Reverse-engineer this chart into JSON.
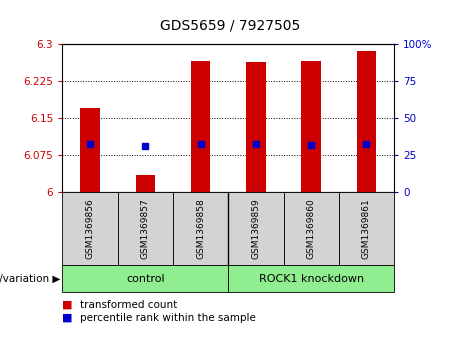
{
  "title": "GDS5659 / 7927505",
  "samples": [
    "GSM1369856",
    "GSM1369857",
    "GSM1369858",
    "GSM1369859",
    "GSM1369860",
    "GSM1369861"
  ],
  "bar_values": [
    6.17,
    6.035,
    6.265,
    6.263,
    6.265,
    6.285
  ],
  "percentile_values": [
    6.098,
    6.093,
    6.097,
    6.097,
    6.096,
    6.097
  ],
  "ylim": [
    6.0,
    6.3
  ],
  "yticks": [
    6.0,
    6.075,
    6.15,
    6.225,
    6.3
  ],
  "ytick_labels": [
    "6",
    "6.075",
    "6.15",
    "6.225",
    "6.3"
  ],
  "right_yticks": [
    0,
    25,
    50,
    75,
    100
  ],
  "right_ytick_labels": [
    "0",
    "25",
    "50",
    "75",
    "100%"
  ],
  "bar_color": "#cc0000",
  "percentile_color": "#0000cc",
  "bar_width": 0.35,
  "tick_color_left": "#cc0000",
  "tick_color_right": "#0000cc",
  "sample_bg": "#d3d3d3",
  "group_bg": "#90ee90",
  "legend_items": [
    {
      "label": "transformed count",
      "color": "#cc0000"
    },
    {
      "label": "percentile rank within the sample",
      "color": "#0000cc"
    }
  ]
}
